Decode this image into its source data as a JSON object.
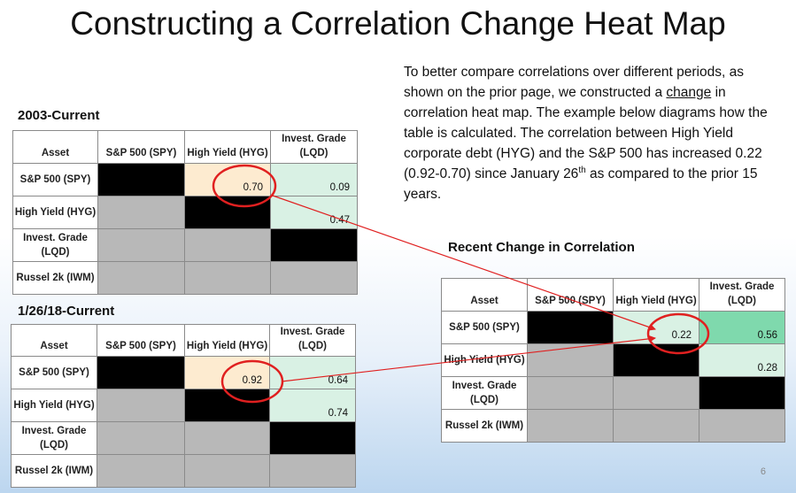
{
  "title": "Constructing a Correlation Change Heat Map",
  "description": {
    "p1": "To better compare correlations over different periods, as shown on the prior page, we constructed a ",
    "underlined": "change",
    "p2": " in correlation heat map. The example below diagrams how the table is calculated. The correlation between High Yield corporate debt (HYG) and the S&P 500 has increased 0.22 (0.92-0.70) since January 26",
    "superscript": "th",
    "p3": " as compared to the prior 15 years."
  },
  "colors": {
    "black": "#000000",
    "gray": "#b8b8b8",
    "peach": "#fdebd0",
    "mint": "#d9f1e4",
    "mint_strong": "#7fd9ad",
    "annotation_red": "#e02020"
  },
  "tables": {
    "t1": {
      "title": "2003-Current",
      "headers": [
        "Asset",
        "S&P 500 (SPY)",
        "High Yield (HYG)",
        "Invest. Grade (LQD)"
      ],
      "rows": [
        {
          "label": "S&P 500 (SPY)",
          "cells": [
            "",
            "0.70",
            "0.09"
          ]
        },
        {
          "label": "High Yield (HYG)",
          "cells": [
            "",
            "",
            "0.47"
          ]
        },
        {
          "label": "Invest. Grade (LQD)",
          "cells": [
            "",
            "",
            ""
          ]
        },
        {
          "label": "Russel 2k (IWM)",
          "cells": [
            "",
            "",
            ""
          ]
        }
      ]
    },
    "t2": {
      "title": "1/26/18-Current",
      "headers": [
        "Asset",
        "S&P 500 (SPY)",
        "High Yield (HYG)",
        "Invest. Grade (LQD)"
      ],
      "rows": [
        {
          "label": "S&P 500 (SPY)",
          "cells": [
            "",
            "0.92",
            "0.64"
          ]
        },
        {
          "label": "High Yield (HYG)",
          "cells": [
            "",
            "",
            "0.74"
          ]
        },
        {
          "label": "Invest. Grade (LQD)",
          "cells": [
            "",
            "",
            ""
          ]
        },
        {
          "label": "Russel 2k (IWM)",
          "cells": [
            "",
            "",
            ""
          ]
        }
      ]
    },
    "t3": {
      "title": "Recent Change in Correlation",
      "headers": [
        "Asset",
        "S&P 500 (SPY)",
        "High Yield (HYG)",
        "Invest. Grade (LQD)"
      ],
      "rows": [
        {
          "label": "S&P 500 (SPY)",
          "cells": [
            "",
            "0.22",
            "0.56"
          ]
        },
        {
          "label": "High Yield (HYG)",
          "cells": [
            "",
            "",
            "0.28"
          ]
        },
        {
          "label": "Invest. Grade (LQD)",
          "cells": [
            "",
            "",
            ""
          ]
        },
        {
          "label": "Russel 2k (IWM)",
          "cells": [
            "",
            "",
            ""
          ]
        }
      ]
    }
  },
  "page_number": "6"
}
